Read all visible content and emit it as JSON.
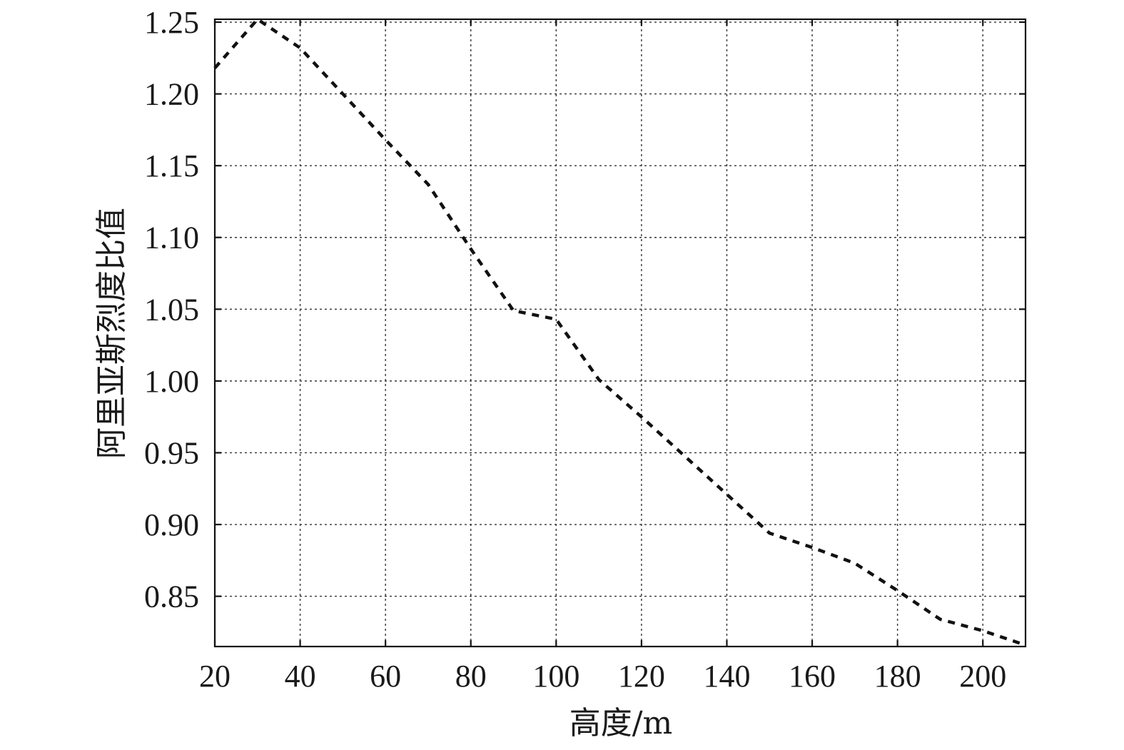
{
  "chart_data": {
    "type": "line",
    "xlabel": "高度/m",
    "ylabel": "阿里亚斯烈度比值",
    "xlim": [
      20,
      210
    ],
    "ylim": [
      0.815,
      1.252
    ],
    "x_ticks": [
      20,
      40,
      60,
      80,
      100,
      120,
      140,
      160,
      180,
      200
    ],
    "y_ticks": [
      0.85,
      0.9,
      0.95,
      1.0,
      1.05,
      1.1,
      1.15,
      1.2,
      1.25
    ],
    "x_tick_labels": [
      "20",
      "40",
      "60",
      "80",
      "100",
      "120",
      "140",
      "160",
      "180",
      "200"
    ],
    "y_tick_labels": [
      "0.85",
      "0.90",
      "0.95",
      "1.00",
      "1.05",
      "1.10",
      "1.15",
      "1.20",
      "1.25"
    ],
    "grid": true,
    "series": [
      {
        "x": [
          20,
          30,
          40,
          50,
          60,
          70,
          80,
          90,
          100,
          110,
          120,
          130,
          140,
          150,
          160,
          170,
          180,
          190,
          200,
          210
        ],
        "values": [
          1.218,
          1.252,
          1.232,
          1.2,
          1.168,
          1.137,
          1.092,
          1.049,
          1.043,
          1.001,
          0.975,
          0.948,
          0.921,
          0.894,
          0.884,
          0.873,
          0.854,
          0.834,
          0.826,
          0.816
        ]
      }
    ],
    "colors": {
      "line": "#111111",
      "grid": "#333333",
      "frame": "#111111"
    }
  }
}
